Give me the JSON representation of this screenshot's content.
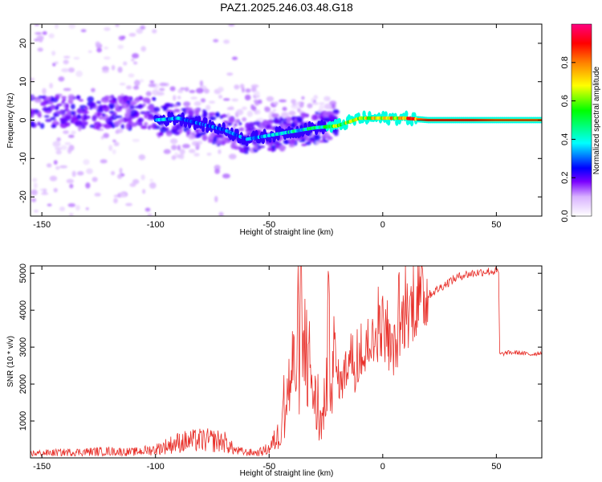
{
  "title": "PAZ1.2025.246.03.48.G18",
  "chart_data": [
    {
      "type": "heatmap",
      "xlabel": "Height of straight line (km)",
      "ylabel": "Frequency (Hz)",
      "xlim": [
        -155,
        70
      ],
      "ylim": [
        -25,
        25
      ],
      "x_ticks": [
        -150,
        -100,
        -50,
        0,
        50
      ],
      "x_tick_labels": [
        "-150",
        "-100",
        "-50",
        "0",
        "50"
      ],
      "y_ticks": [
        -20,
        -10,
        0,
        10,
        20
      ],
      "y_tick_labels": [
        "-20",
        "-10",
        "0",
        "10",
        "20"
      ],
      "colorbar": {
        "label": "Normalized spectral amplitude",
        "range": [
          0,
          1
        ],
        "ticks": [
          0.0,
          0.2,
          0.4,
          0.6,
          0.8
        ],
        "tick_labels": [
          "0.0",
          "0.2",
          "0.4",
          "0.6",
          "0.8"
        ],
        "colors": [
          "#ffffff",
          "#d9b3ff",
          "#7a00ff",
          "#0000ff",
          "#00ffff",
          "#00ff00",
          "#ffff00",
          "#ff8000",
          "#ff0000",
          "#ff0080"
        ]
      },
      "ridge": {
        "x": [
          -100,
          -90,
          -80,
          -70,
          -60,
          -50,
          -40,
          -30,
          -20,
          -10,
          0,
          10,
          20,
          30,
          40,
          50,
          60,
          70
        ],
        "frequency": [
          0,
          0.5,
          -1,
          -2.5,
          -5,
          -4,
          -3,
          -2,
          -1.5,
          0.5,
          0.5,
          0.5,
          0,
          0,
          0,
          0,
          0,
          0
        ],
        "amplitude": [
          0.35,
          0.35,
          0.3,
          0.3,
          0.3,
          0.35,
          0.4,
          0.45,
          0.6,
          0.65,
          0.7,
          0.75,
          0.85,
          0.85,
          0.85,
          0.8,
          0.8,
          0.8
        ]
      }
    },
    {
      "type": "line",
      "xlabel": "Height of straight line (km)",
      "ylabel": "SNR (10 * v/v)",
      "xlim": [
        -155,
        70
      ],
      "ylim": [
        0,
        5200
      ],
      "x_ticks": [
        -150,
        -100,
        -50,
        0,
        50
      ],
      "x_tick_labels": [
        "-150",
        "-100",
        "-50",
        "0",
        "50"
      ],
      "y_ticks": [
        1000,
        2000,
        3000,
        4000,
        5000
      ],
      "y_tick_labels": [
        "1000",
        "2000",
        "3000",
        "4000",
        "5000"
      ],
      "color": "#e8302a",
      "series": [
        {
          "x": [
            -155,
            -140,
            -120,
            -110,
            -100,
            -90,
            -80,
            -70,
            -65,
            -60,
            -55,
            -50,
            -45,
            -42,
            -40,
            -38,
            -36,
            -34,
            -32,
            -30,
            -28,
            -26,
            -24,
            -22,
            -20,
            -18,
            -16,
            -14,
            -12,
            -10,
            -8,
            -6,
            -4,
            -2,
            0,
            2,
            4,
            6,
            8,
            10,
            12,
            14,
            16,
            20,
            25,
            30,
            35,
            40,
            45,
            50,
            51,
            51.5,
            55,
            60,
            65,
            70
          ],
          "y": [
            120,
            150,
            180,
            160,
            230,
            420,
            480,
            450,
            200,
            150,
            140,
            250,
            700,
            1700,
            2300,
            2600,
            2800,
            3000,
            2400,
            1600,
            900,
            1100,
            3200,
            2700,
            2200,
            2000,
            2400,
            2800,
            2300,
            2900,
            2600,
            3300,
            3000,
            3500,
            3600,
            3200,
            2900,
            3000,
            3600,
            3900,
            4000,
            4200,
            4300,
            4400,
            4600,
            4800,
            4950,
            5000,
            5050,
            5050,
            5000,
            2800,
            2850,
            2850,
            2800,
            2850
          ]
        }
      ]
    }
  ]
}
